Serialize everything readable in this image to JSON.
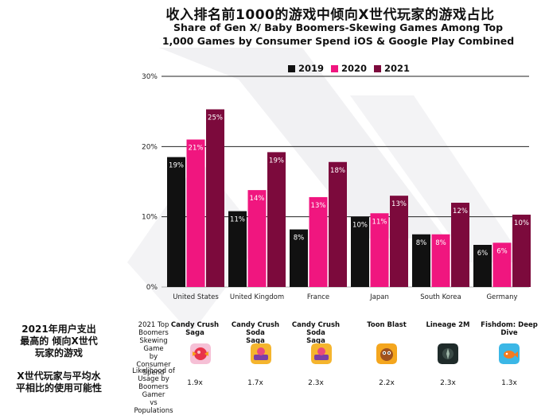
{
  "title_cn": "收入排名前1000的游戏中倾向X世代玩家的游戏占比",
  "title_en_line1": "Share of Gen X/ Baby Boomers-Skewing Games Among Top",
  "title_en_line2": "1,000 Games by Consumer Spend iOS & Google Play Combined",
  "colors": {
    "2019": "#111111",
    "2020": "#f0167f",
    "2021": "#7c0a3c",
    "gridline": "#222222"
  },
  "chart_data": {
    "type": "bar",
    "categories": [
      "United States",
      "United Kingdom",
      "France",
      "Japan",
      "South Korea",
      "Germany"
    ],
    "series": [
      {
        "name": "2019",
        "values": [
          18.5,
          10.8,
          8.2,
          10.0,
          7.5,
          6.0
        ],
        "labels": [
          "19%",
          "11%",
          "8%",
          "10%",
          "8%",
          "6%"
        ]
      },
      {
        "name": "2020",
        "values": [
          21.0,
          13.8,
          12.8,
          10.5,
          7.5,
          6.3
        ],
        "labels": [
          "21%",
          "14%",
          "13%",
          "11%",
          "8%",
          "6%"
        ]
      },
      {
        "name": "2021",
        "values": [
          25.3,
          19.2,
          17.8,
          13.0,
          12.0,
          10.3
        ],
        "labels": [
          "25%",
          "19%",
          "18%",
          "13%",
          "12%",
          "10%"
        ]
      }
    ],
    "ylim": [
      0,
      30
    ],
    "yticks": [
      0,
      10,
      20,
      30
    ],
    "ytick_labels": [
      "0%",
      "10%",
      "20%",
      "30%"
    ],
    "legend_position": "top",
    "grid": "horizontal"
  },
  "side": {
    "label1_line1": "2021年用户支出",
    "label1_line2": "最高的 倾向X世代",
    "label1_line3": "玩家的游戏",
    "label2_line1": "X世代玩家与平均水",
    "label2_line2": "平相比的使用可能性"
  },
  "table": {
    "row1_head_lines": [
      "2021 Top",
      "Boomers",
      "Skewing Game",
      "by Consumer",
      "Spend"
    ],
    "row2_head_lines": [
      "Likelihood of",
      "Usage by",
      "Boomers Gamer",
      "vs Populations"
    ],
    "games": [
      {
        "name_line1": "Candy Crush Saga",
        "name_line2": "",
        "ratio": "1.9x",
        "icon": "candy-crush-icon"
      },
      {
        "name_line1": "Candy Crush Soda",
        "name_line2": "Saga",
        "ratio": "1.7x",
        "icon": "candy-crush-soda-icon"
      },
      {
        "name_line1": "Candy Crush Soda",
        "name_line2": "Saga",
        "ratio": "2.3x",
        "icon": "candy-crush-soda-icon"
      },
      {
        "name_line1": "Toon Blast",
        "name_line2": "",
        "ratio": "2.2x",
        "icon": "toon-blast-icon"
      },
      {
        "name_line1": "Lineage 2M",
        "name_line2": "",
        "ratio": "2.3x",
        "icon": "lineage-2m-icon"
      },
      {
        "name_line1": "Fishdom: Deep",
        "name_line2": "Dive",
        "ratio": "1.3x",
        "icon": "fishdom-icon"
      }
    ]
  }
}
